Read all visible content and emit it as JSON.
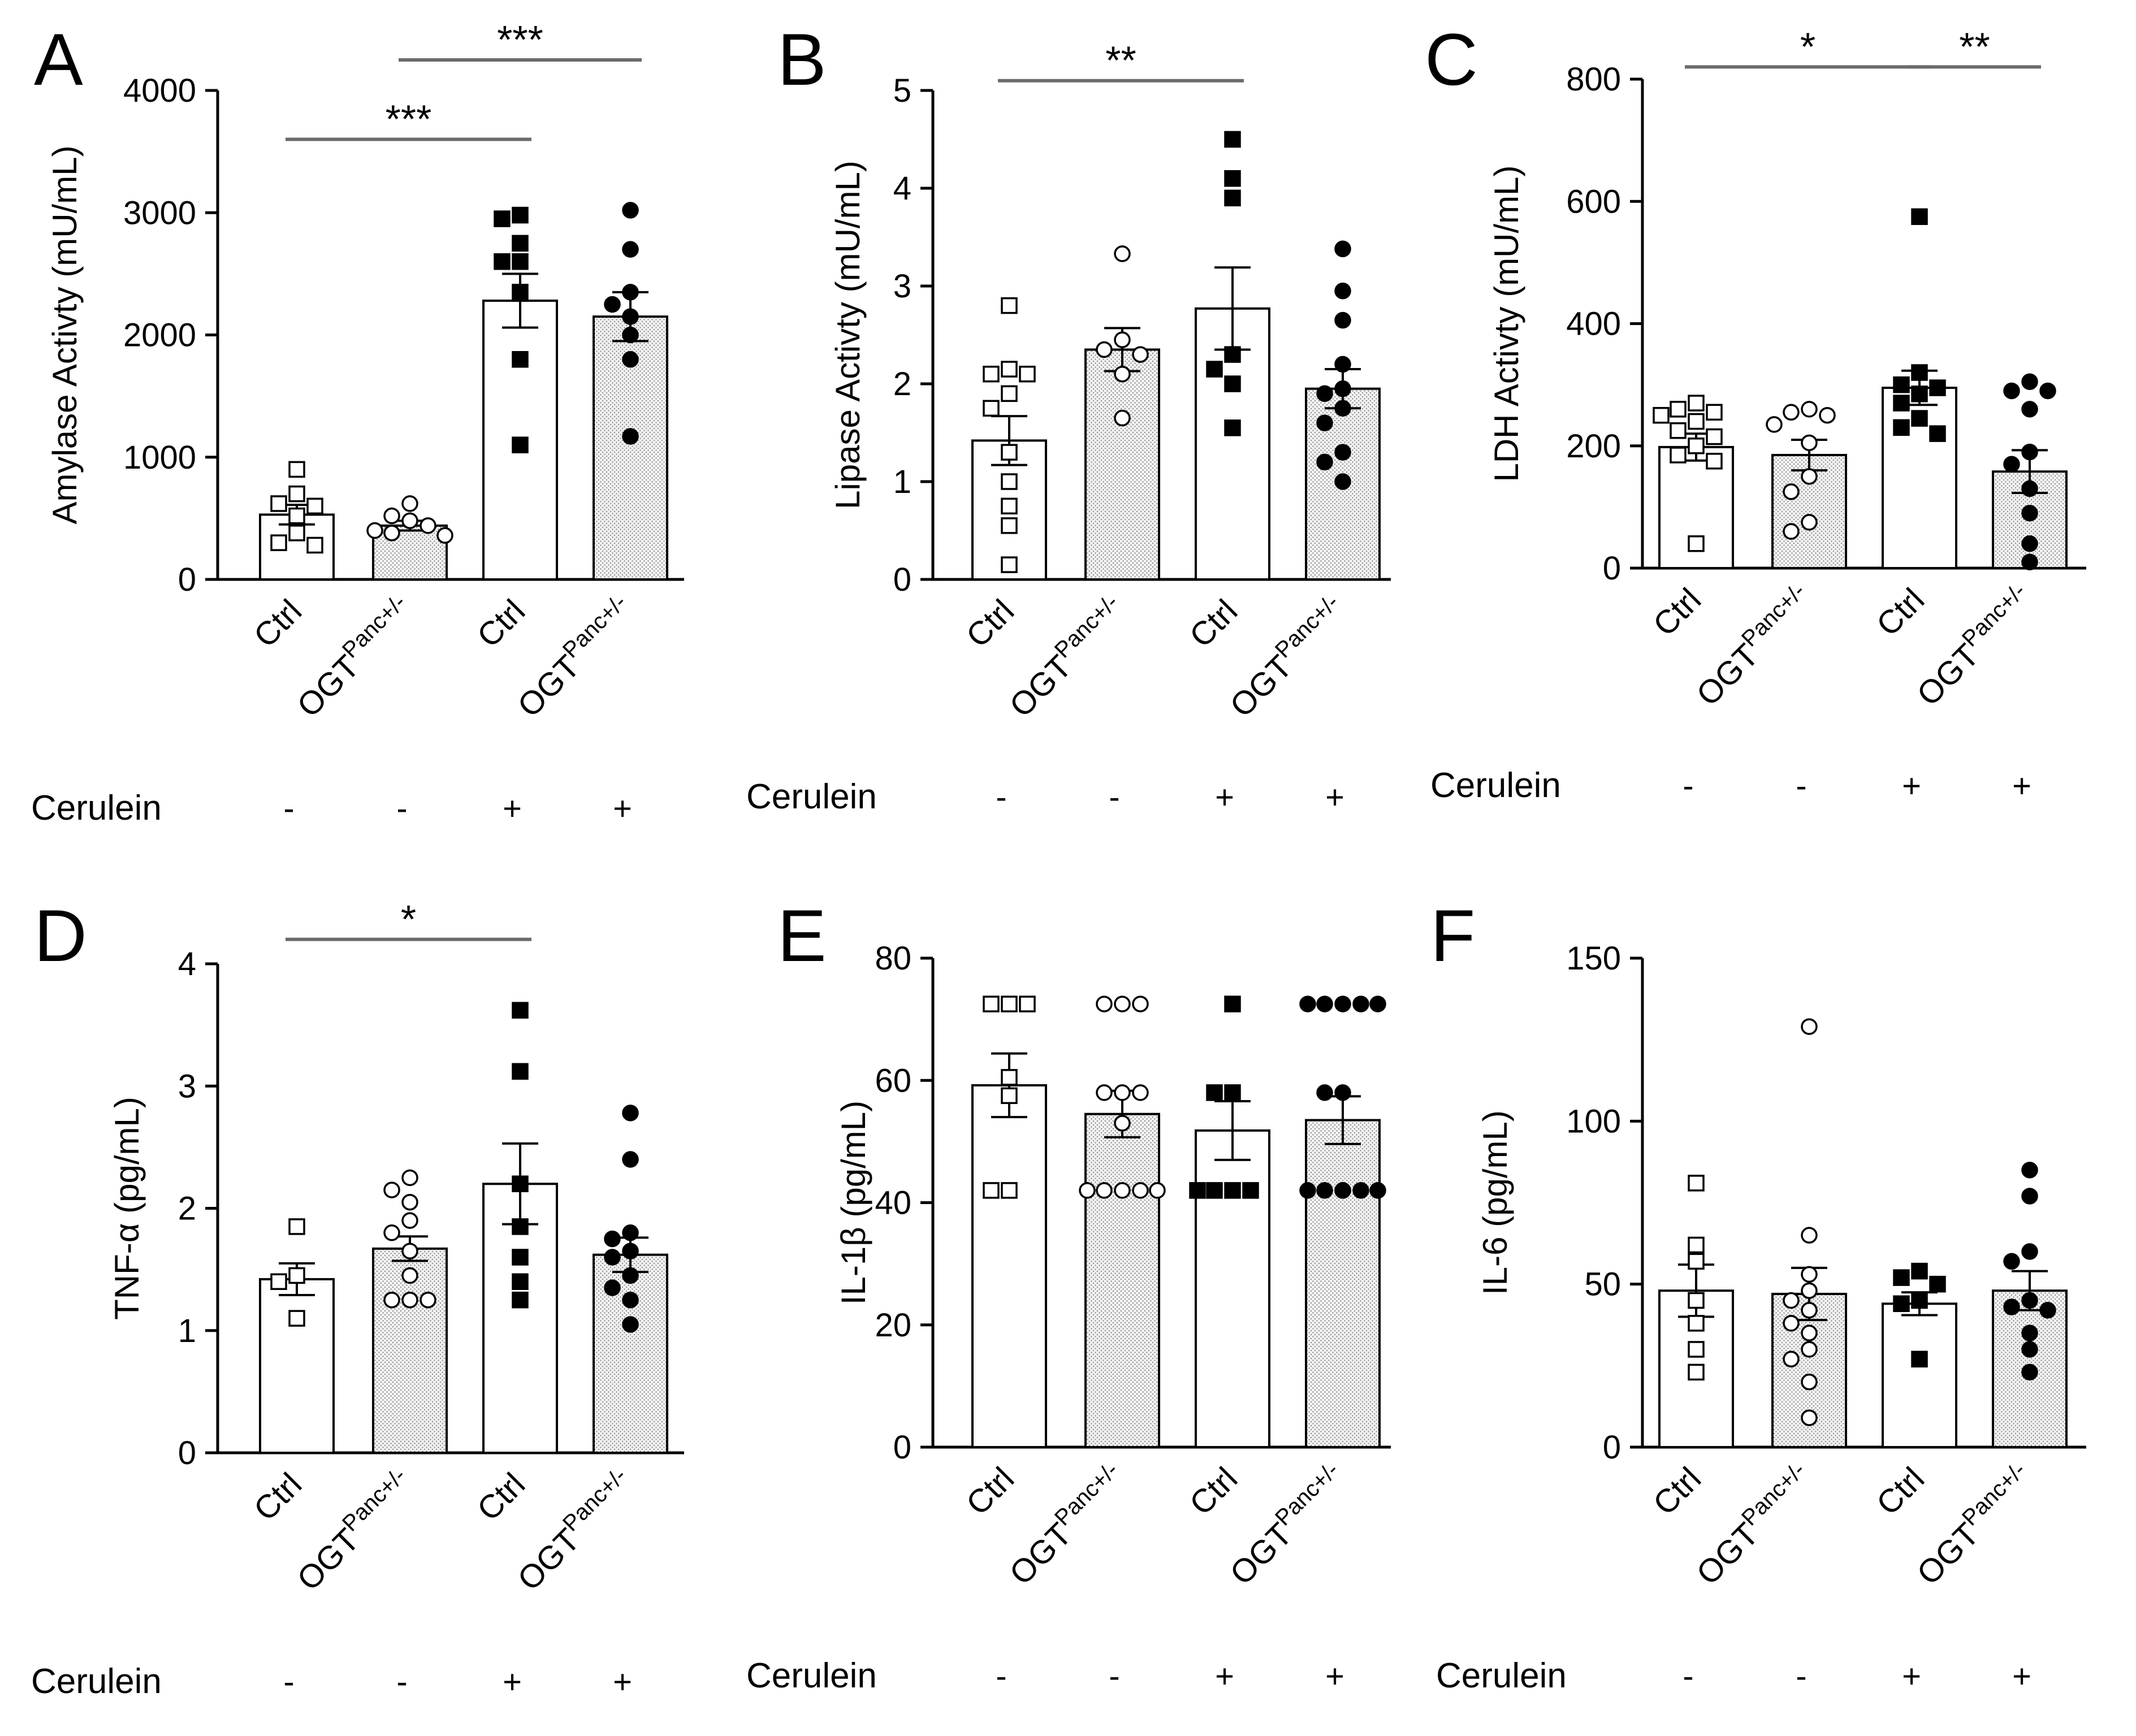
{
  "chart_data": [
    {
      "type": "bar",
      "panel": "A",
      "ylabel": "Amylase Activty (mU/mL)",
      "ylim": [
        0,
        4000
      ],
      "yticks": [
        "0",
        "1000",
        "2000",
        "3000",
        "4000"
      ],
      "categories": [
        "Ctrl",
        "OGT",
        "Ctrl",
        "OGT"
      ],
      "category_sup": [
        "",
        "Panc+/-",
        "",
        "Panc+/-"
      ],
      "cerulein": [
        "-",
        "-",
        "+",
        "+"
      ],
      "means": [
        530,
        440,
        2280,
        2150
      ],
      "sem": [
        80,
        40,
        220,
        200
      ],
      "points": [
        [
          900,
          700,
          620,
          600,
          520,
          380,
          300,
          280
        ],
        [
          620,
          520,
          480,
          440,
          400,
          380,
          360
        ],
        [
          2980,
          2950,
          2750,
          2600,
          2600,
          2350,
          1800,
          1100
        ],
        [
          3020,
          2700,
          2350,
          2250,
          2150,
          2000,
          1800,
          1170
        ]
      ],
      "sig": [
        {
          "from": 0,
          "to": 2,
          "y": 3600,
          "label": "***"
        },
        {
          "from": 1,
          "to": 3,
          "y": 4250,
          "label": "***"
        }
      ]
    },
    {
      "type": "bar",
      "panel": "B",
      "ylabel": "Lipase Activty (mU/mL)",
      "ylim": [
        0,
        5
      ],
      "yticks": [
        "0",
        "1",
        "2",
        "3",
        "4",
        "5"
      ],
      "categories": [
        "Ctrl",
        "OGT",
        "Ctrl",
        "OGT"
      ],
      "category_sup": [
        "",
        "Panc+/-",
        "",
        "Panc+/-"
      ],
      "cerulein": [
        "-",
        "-",
        "+",
        "+"
      ],
      "means": [
        1.42,
        2.35,
        2.77,
        1.95
      ],
      "sem": [
        0.25,
        0.22,
        0.42,
        0.2
      ],
      "points": [
        [
          2.8,
          2.15,
          2.1,
          2.1,
          1.9,
          1.75,
          1.3,
          1.0,
          0.75,
          0.55,
          0.15
        ],
        [
          3.33,
          2.45,
          2.35,
          2.3,
          2.1,
          1.65
        ],
        [
          4.5,
          4.1,
          3.9,
          2.3,
          2.15,
          2.0,
          1.55
        ],
        [
          3.38,
          2.95,
          2.65,
          2.2,
          1.95,
          1.9,
          1.75,
          1.6,
          1.3,
          1.2,
          1.0
        ]
      ],
      "sig": [
        {
          "from": 0,
          "to": 2,
          "y": 5.1,
          "label": "**"
        }
      ]
    },
    {
      "type": "bar",
      "panel": "C",
      "ylabel": "LDH Activty (mU/mL)",
      "ylim": [
        0,
        800
      ],
      "yticks": [
        "0",
        "200",
        "400",
        "600",
        "800"
      ],
      "categories": [
        "Ctrl",
        "OGT",
        "Ctrl",
        "OGT"
      ],
      "category_sup": [
        "",
        "Panc+/-",
        "",
        "Panc+/-"
      ],
      "cerulein": [
        "-",
        "-",
        "+",
        "+"
      ],
      "means": [
        198,
        185,
        295,
        158
      ],
      "sem": [
        22,
        25,
        28,
        35
      ],
      "points": [
        [
          270,
          260,
          255,
          250,
          240,
          225,
          215,
          200,
          185,
          175,
          40
        ],
        [
          260,
          255,
          250,
          235,
          205,
          150,
          125,
          75,
          60
        ],
        [
          575,
          320,
          300,
          295,
          285,
          270,
          245,
          230,
          220
        ],
        [
          305,
          290,
          290,
          260,
          190,
          170,
          130,
          90,
          40,
          10
        ]
      ],
      "sig": [
        {
          "from": 0,
          "to": 2,
          "y": 820,
          "label": "*"
        },
        {
          "from": 2,
          "to": 3,
          "y": 820,
          "label": "**"
        }
      ]
    },
    {
      "type": "bar",
      "panel": "D",
      "ylabel": "TNF-α (pg/mL)",
      "ylim": [
        0,
        4
      ],
      "yticks": [
        "0",
        "1",
        "2",
        "3",
        "4"
      ],
      "categories": [
        "Ctrl",
        "OGT",
        "Ctrl",
        "OGT"
      ],
      "category_sup": [
        "",
        "Panc+/-",
        "",
        "Panc+/-"
      ],
      "cerulein": [
        "-",
        "-",
        "+",
        "+"
      ],
      "means": [
        1.42,
        1.67,
        2.2,
        1.62
      ],
      "sem": [
        0.13,
        0.1,
        0.33,
        0.14
      ],
      "points": [
        [
          1.85,
          1.45,
          1.4,
          1.1
        ],
        [
          2.25,
          2.15,
          2.05,
          1.9,
          1.8,
          1.65,
          1.45,
          1.25,
          1.25,
          1.25
        ],
        [
          3.62,
          3.12,
          2.2,
          1.85,
          1.6,
          1.4,
          1.25
        ],
        [
          2.78,
          2.4,
          1.8,
          1.75,
          1.65,
          1.6,
          1.45,
          1.35,
          1.25,
          1.05
        ]
      ],
      "sig": [
        {
          "from": 0,
          "to": 2,
          "y": 4.2,
          "label": "*"
        }
      ]
    },
    {
      "type": "bar",
      "panel": "E",
      "ylabel": "IL-1β (pg/mL)",
      "ylim": [
        0,
        80
      ],
      "yticks": [
        "0",
        "20",
        "40",
        "60",
        "80"
      ],
      "categories": [
        "Ctrl",
        "OGT",
        "Ctrl",
        "OGT"
      ],
      "category_sup": [
        "",
        "Panc+/-",
        "",
        "Panc+/-"
      ],
      "cerulein": [
        "-",
        "-",
        "+",
        "+"
      ],
      "means": [
        59.2,
        54.5,
        51.8,
        53.5
      ],
      "sem": [
        5.2,
        3.8,
        4.8,
        3.9
      ],
      "points": [
        [
          72.5,
          72.5,
          72.5,
          60.5,
          57.5,
          42,
          42
        ],
        [
          72.5,
          72.5,
          72.5,
          58,
          58,
          58,
          53,
          42,
          42,
          42,
          42,
          42
        ],
        [
          72.5,
          58,
          58,
          42,
          42,
          42,
          42
        ],
        [
          72.5,
          72.5,
          72.5,
          72.5,
          72.5,
          58,
          58,
          42,
          42,
          42,
          42,
          42,
          42,
          42
        ]
      ],
      "sig": []
    },
    {
      "type": "bar",
      "panel": "F",
      "ylabel": "IL-6 (pg/mL)",
      "ylim": [
        0,
        150
      ],
      "yticks": [
        "0",
        "50",
        "100",
        "150"
      ],
      "categories": [
        "Ctrl",
        "OGT",
        "Ctrl",
        "OGT"
      ],
      "category_sup": [
        "",
        "Panc+/-",
        "",
        "Panc+/-"
      ],
      "cerulein": [
        "-",
        "-",
        "+",
        "+"
      ],
      "means": [
        48,
        47,
        44,
        48
      ],
      "sem": [
        8,
        8,
        3.5,
        6
      ],
      "points": [
        [
          81,
          62,
          57,
          45,
          38,
          30,
          23
        ],
        [
          129,
          65,
          53,
          48,
          45,
          42,
          38,
          35,
          30,
          27,
          20,
          9
        ],
        [
          54,
          52,
          50,
          45,
          44,
          27
        ],
        [
          85,
          77,
          60,
          57,
          45,
          43,
          42,
          35,
          30,
          23
        ]
      ],
      "sig": []
    }
  ],
  "cerulein_label": "Cerulein",
  "colors": {
    "ink": "#000000",
    "sig_line": "#6b6b6b",
    "stipple_bg": "#f2f2f2",
    "stipple_dot": "#8c8c8c"
  }
}
